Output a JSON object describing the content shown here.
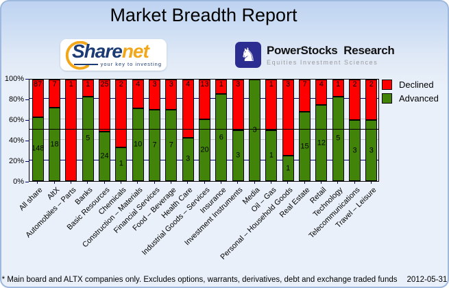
{
  "header": {
    "title": "Market Breadth Report"
  },
  "logos": {
    "sharenet": {
      "brand_primary": "Share",
      "brand_secondary": "net",
      "tagline": "your key to investing",
      "accent_gold": "#F2A71B",
      "accent_navy": "#1C3B74"
    },
    "powerstocks": {
      "name": "PowerStocks  Research",
      "tagline": "Equities Investment Sciences",
      "icon": "knight-icon",
      "badge_color": "#2B2E90"
    }
  },
  "chart_data": {
    "type": "bar",
    "stacked": true,
    "normalized_to_100pct": true,
    "title": "Market Breadth Report",
    "categories": [
      "All share",
      "AltX",
      "Automobiles – Parts",
      "Banks",
      "Basic Resources",
      "Chemicals",
      "Construction – Materials",
      "Financial Services",
      "Food – Beverage",
      "Health Care",
      "Industrial Goods – Services",
      "Insurance",
      "Investment Instruments",
      "Media",
      "Oil – Gas",
      "Personal – Household Goods",
      "Real Estate",
      "Retail",
      "Technology",
      "Telecommunications",
      "Travel – Leisure"
    ],
    "series": [
      {
        "name": "Declined",
        "color": "#FF0000",
        "values": [
          87,
          7,
          1,
          1,
          25,
          2,
          4,
          3,
          3,
          4,
          13,
          1,
          3,
          0,
          1,
          3,
          7,
          4,
          1,
          2,
          2
        ]
      },
      {
        "name": "Advanced",
        "color": "#428409",
        "values": [
          148,
          18,
          0,
          5,
          24,
          1,
          10,
          7,
          7,
          3,
          20,
          6,
          3,
          3,
          1,
          1,
          15,
          12,
          5,
          3,
          3
        ]
      }
    ],
    "value_axis": {
      "min": 0,
      "max": 100,
      "ticks": [
        "0%",
        "20%",
        "40%",
        "60%",
        "80%",
        "100%"
      ]
    },
    "reference_line_pct": 50,
    "legend_position": "top-right",
    "grid": "horizontal"
  },
  "footer": {
    "note": "* Main board and ALTX companies only. Excludes options, warrants, derivatives, debt and exchange traded funds",
    "date": "2012-05-31"
  }
}
